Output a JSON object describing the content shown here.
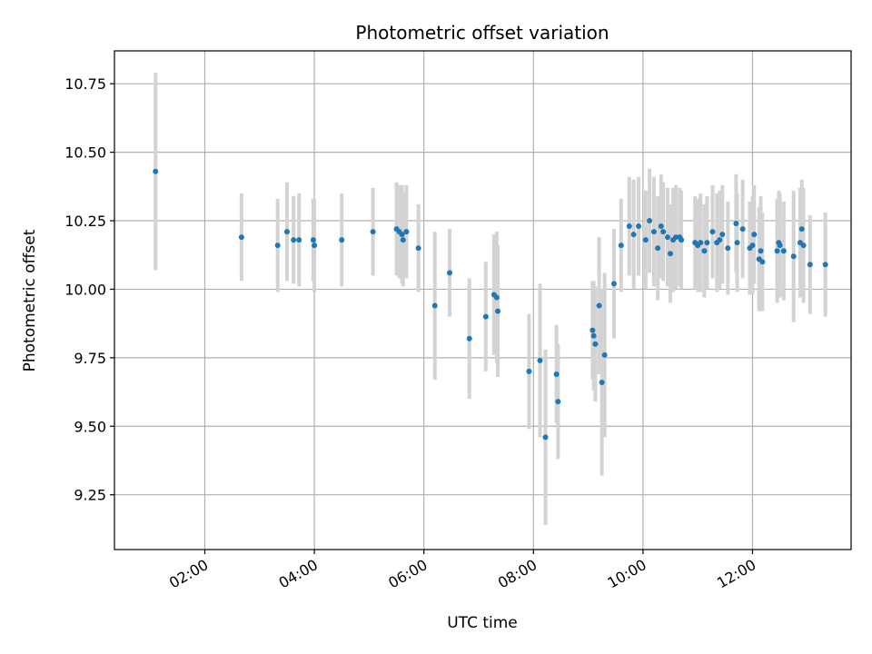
{
  "chart_data": {
    "type": "scatter",
    "title": "Photometric offset variation",
    "xlabel": "UTC time",
    "ylabel": "Photometric offset",
    "x_unit": "hours UTC",
    "xlim": [
      0.35,
      13.8
    ],
    "ylim": [
      9.05,
      10.87
    ],
    "x_ticks": [
      {
        "value": 2,
        "label": "02:00"
      },
      {
        "value": 4,
        "label": "04:00"
      },
      {
        "value": 6,
        "label": "06:00"
      },
      {
        "value": 8,
        "label": "08:00"
      },
      {
        "value": 10,
        "label": "10:00"
      },
      {
        "value": 12,
        "label": "12:00"
      }
    ],
    "y_ticks": [
      {
        "value": 9.25,
        "label": "9.25"
      },
      {
        "value": 9.5,
        "label": "9.50"
      },
      {
        "value": 9.75,
        "label": "9.75"
      },
      {
        "value": 10.0,
        "label": "10.00"
      },
      {
        "value": 10.25,
        "label": "10.25"
      },
      {
        "value": 10.5,
        "label": "10.50"
      },
      {
        "value": 10.75,
        "label": "10.75"
      }
    ],
    "grid": true,
    "colors": {
      "point": "#1f77b4",
      "errorbar": "#d3d3d3",
      "grid": "#b0b0b0"
    },
    "points": [
      {
        "x": 1.1,
        "y": 10.43,
        "err": 0.36
      },
      {
        "x": 2.67,
        "y": 10.19,
        "err": 0.16
      },
      {
        "x": 3.33,
        "y": 10.16,
        "err": 0.17
      },
      {
        "x": 3.5,
        "y": 10.21,
        "err": 0.18
      },
      {
        "x": 3.62,
        "y": 10.18,
        "err": 0.16
      },
      {
        "x": 3.72,
        "y": 10.18,
        "err": 0.17
      },
      {
        "x": 3.98,
        "y": 10.18,
        "err": 0.15
      },
      {
        "x": 4.0,
        "y": 10.16,
        "err": 0.17
      },
      {
        "x": 4.5,
        "y": 10.18,
        "err": 0.17
      },
      {
        "x": 5.07,
        "y": 10.21,
        "err": 0.16
      },
      {
        "x": 5.5,
        "y": 10.22,
        "err": 0.17
      },
      {
        "x": 5.55,
        "y": 10.21,
        "err": 0.17
      },
      {
        "x": 5.6,
        "y": 10.2,
        "err": 0.18
      },
      {
        "x": 5.62,
        "y": 10.18,
        "err": 0.17
      },
      {
        "x": 5.68,
        "y": 10.21,
        "err": 0.17
      },
      {
        "x": 5.9,
        "y": 10.15,
        "err": 0.16
      },
      {
        "x": 6.2,
        "y": 9.94,
        "err": 0.27
      },
      {
        "x": 6.47,
        "y": 10.06,
        "err": 0.16
      },
      {
        "x": 6.83,
        "y": 9.82,
        "err": 0.22
      },
      {
        "x": 7.13,
        "y": 9.9,
        "err": 0.2
      },
      {
        "x": 7.28,
        "y": 9.98,
        "err": 0.22
      },
      {
        "x": 7.33,
        "y": 9.97,
        "err": 0.24
      },
      {
        "x": 7.35,
        "y": 9.92,
        "err": 0.24
      },
      {
        "x": 7.92,
        "y": 9.7,
        "err": 0.21
      },
      {
        "x": 8.12,
        "y": 9.74,
        "err": 0.28
      },
      {
        "x": 8.22,
        "y": 9.46,
        "err": 0.32
      },
      {
        "x": 8.42,
        "y": 9.69,
        "err": 0.18
      },
      {
        "x": 8.45,
        "y": 9.59,
        "err": 0.21
      },
      {
        "x": 9.08,
        "y": 9.85,
        "err": 0.18
      },
      {
        "x": 9.1,
        "y": 9.83,
        "err": 0.2
      },
      {
        "x": 9.13,
        "y": 9.8,
        "err": 0.21
      },
      {
        "x": 9.2,
        "y": 9.94,
        "err": 0.25
      },
      {
        "x": 9.25,
        "y": 9.66,
        "err": 0.34
      },
      {
        "x": 9.3,
        "y": 9.76,
        "err": 0.3
      },
      {
        "x": 9.47,
        "y": 10.02,
        "err": 0.2
      },
      {
        "x": 9.6,
        "y": 10.16,
        "err": 0.17
      },
      {
        "x": 9.75,
        "y": 10.23,
        "err": 0.18
      },
      {
        "x": 9.83,
        "y": 10.2,
        "err": 0.2
      },
      {
        "x": 9.92,
        "y": 10.23,
        "err": 0.18
      },
      {
        "x": 10.05,
        "y": 10.18,
        "err": 0.18
      },
      {
        "x": 10.12,
        "y": 10.25,
        "err": 0.19
      },
      {
        "x": 10.2,
        "y": 10.21,
        "err": 0.2
      },
      {
        "x": 10.27,
        "y": 10.15,
        "err": 0.19
      },
      {
        "x": 10.33,
        "y": 10.23,
        "err": 0.19
      },
      {
        "x": 10.37,
        "y": 10.21,
        "err": 0.18
      },
      {
        "x": 10.45,
        "y": 10.19,
        "err": 0.18
      },
      {
        "x": 10.5,
        "y": 10.13,
        "err": 0.18
      },
      {
        "x": 10.55,
        "y": 10.18,
        "err": 0.19
      },
      {
        "x": 10.6,
        "y": 10.19,
        "err": 0.19
      },
      {
        "x": 10.67,
        "y": 10.19,
        "err": 0.18
      },
      {
        "x": 10.7,
        "y": 10.18,
        "err": 0.18
      },
      {
        "x": 10.95,
        "y": 10.17,
        "err": 0.17
      },
      {
        "x": 11.0,
        "y": 10.16,
        "err": 0.17
      },
      {
        "x": 11.05,
        "y": 10.17,
        "err": 0.18
      },
      {
        "x": 11.12,
        "y": 10.14,
        "err": 0.17
      },
      {
        "x": 11.17,
        "y": 10.17,
        "err": 0.17
      },
      {
        "x": 11.27,
        "y": 10.21,
        "err": 0.17
      },
      {
        "x": 11.35,
        "y": 10.17,
        "err": 0.18
      },
      {
        "x": 11.4,
        "y": 10.18,
        "err": 0.18
      },
      {
        "x": 11.45,
        "y": 10.2,
        "err": 0.18
      },
      {
        "x": 11.55,
        "y": 10.15,
        "err": 0.17
      },
      {
        "x": 11.7,
        "y": 10.24,
        "err": 0.18
      },
      {
        "x": 11.72,
        "y": 10.17,
        "err": 0.18
      },
      {
        "x": 11.82,
        "y": 10.22,
        "err": 0.18
      },
      {
        "x": 11.95,
        "y": 10.15,
        "err": 0.17
      },
      {
        "x": 12.0,
        "y": 10.16,
        "err": 0.18
      },
      {
        "x": 12.03,
        "y": 10.2,
        "err": 0.18
      },
      {
        "x": 12.12,
        "y": 10.11,
        "err": 0.19
      },
      {
        "x": 12.15,
        "y": 10.14,
        "err": 0.2
      },
      {
        "x": 12.18,
        "y": 10.1,
        "err": 0.18
      },
      {
        "x": 12.45,
        "y": 10.14,
        "err": 0.19
      },
      {
        "x": 12.48,
        "y": 10.17,
        "err": 0.19
      },
      {
        "x": 12.5,
        "y": 10.16,
        "err": 0.19
      },
      {
        "x": 12.57,
        "y": 10.14,
        "err": 0.18
      },
      {
        "x": 12.75,
        "y": 10.12,
        "err": 0.24
      },
      {
        "x": 12.87,
        "y": 10.17,
        "err": 0.2
      },
      {
        "x": 12.9,
        "y": 10.22,
        "err": 0.18
      },
      {
        "x": 12.93,
        "y": 10.16,
        "err": 0.21
      },
      {
        "x": 13.05,
        "y": 10.09,
        "err": 0.18
      },
      {
        "x": 13.33,
        "y": 10.09,
        "err": 0.19
      }
    ]
  }
}
